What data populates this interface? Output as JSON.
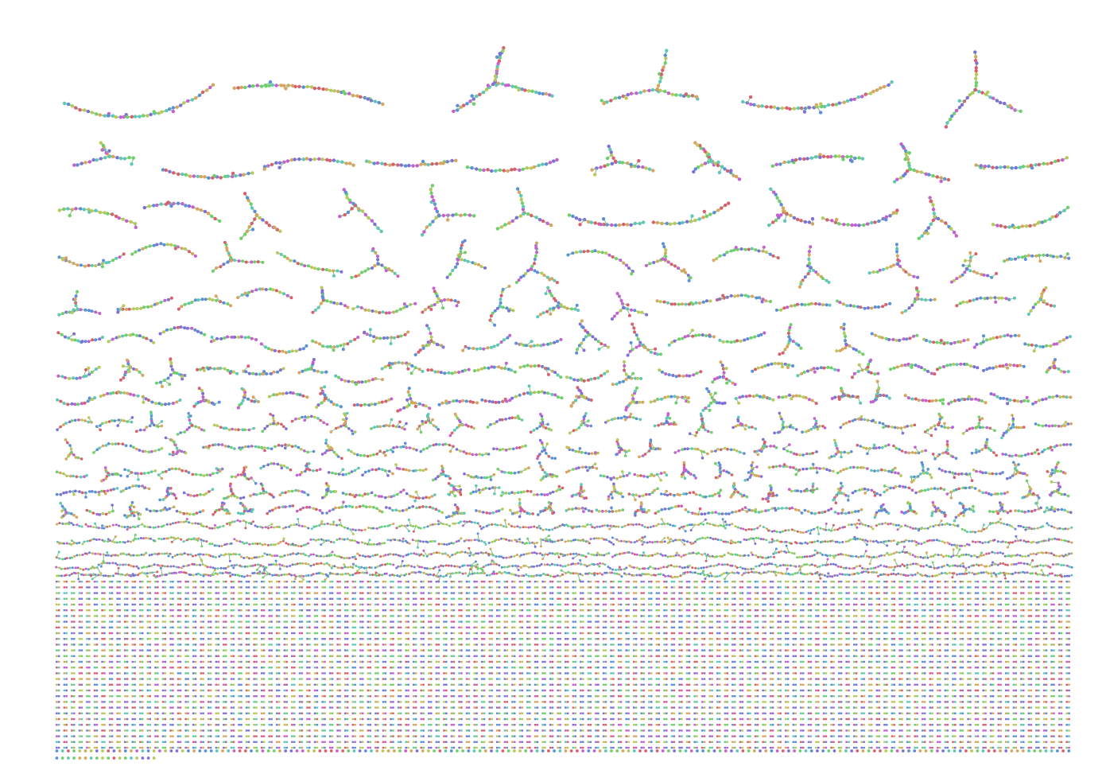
{
  "diagram": {
    "kind": "network component gallery",
    "background": "#ffffff",
    "node_palette": [
      "#6fcf6a",
      "#5b8fd9",
      "#c65fd0",
      "#d95f6e",
      "#5fc7b8",
      "#b8c95a",
      "#7f6fd8",
      "#d9a45f"
    ],
    "edge_color": "#7fbf7f",
    "large_component_rows": [
      {
        "row": 1,
        "components": 6,
        "shape": "long branching chains"
      },
      {
        "row": 2,
        "components": 10,
        "shape": "curved chains"
      },
      {
        "row": 3,
        "components": 12,
        "shape": "curved chains"
      },
      {
        "row": 4,
        "components": 14,
        "shape": "arcs and stars"
      },
      {
        "row": 5,
        "components": 17,
        "shape": "arcs and stars"
      },
      {
        "row": 6,
        "components": 20,
        "shape": "arcs and stars"
      },
      {
        "row": 7,
        "components": 22,
        "shape": "small arcs"
      },
      {
        "row": 8,
        "components": 24,
        "shape": "small arcs"
      },
      {
        "row": 9,
        "components": 26,
        "shape": "small branches"
      },
      {
        "row": 10,
        "components": 28,
        "shape": "small branches"
      },
      {
        "row": 11,
        "components": 30,
        "shape": "small branches"
      },
      {
        "row": 12,
        "components": 32,
        "shape": "tiny trees"
      },
      {
        "row": 13,
        "components": 34,
        "shape": "tiny trees"
      },
      {
        "row": 14,
        "components": 36,
        "shape": "tiny trees"
      },
      {
        "row": 15,
        "components": 40,
        "shape": "tiny trees"
      },
      {
        "row": 16,
        "components": 44,
        "shape": "tiny trees"
      },
      {
        "row": 17,
        "components": 48,
        "shape": "tiny trees"
      },
      {
        "row": 18,
        "components": 52,
        "shape": "tiny trees"
      }
    ],
    "pair_rows": 30,
    "pairs_per_row": 134,
    "singleton_rows": 2,
    "singletons_per_row": 178
  }
}
